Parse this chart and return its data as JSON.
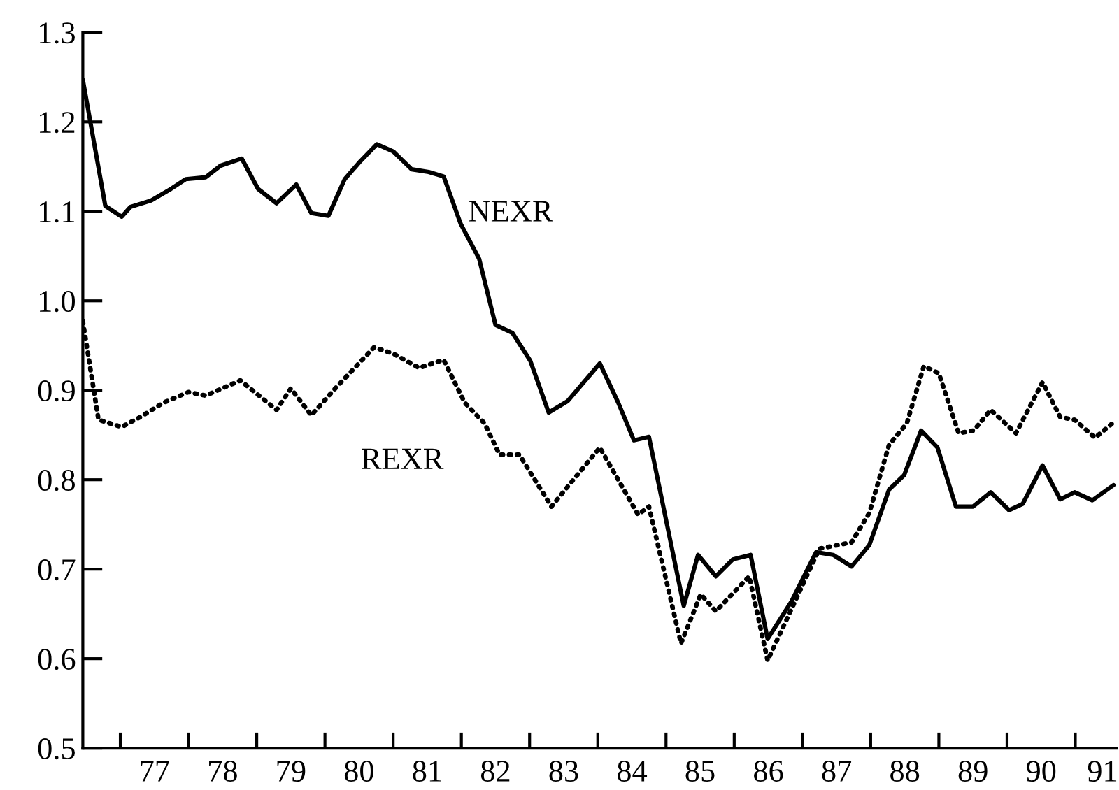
{
  "chart_data": {
    "type": "line",
    "xlim": [
      76.45,
      91.6
    ],
    "ylim": [
      0.5,
      1.3
    ],
    "yticks": [
      0.5,
      0.6,
      0.7,
      0.8,
      0.9,
      {
        "value": 1.0,
        "label": "1.0"
      },
      1.1,
      1.2,
      1.3
    ],
    "xticks": [
      {
        "value": 77,
        "label": null
      },
      {
        "value": 78,
        "label": null
      },
      {
        "value": 79,
        "label": null
      },
      {
        "value": 80,
        "label": null
      },
      {
        "value": 81,
        "label": null
      },
      {
        "value": 82,
        "label": null
      },
      {
        "value": 83,
        "label": null
      },
      {
        "value": 84,
        "label": null
      },
      {
        "value": 85,
        "label": null
      },
      {
        "value": 86,
        "label": null
      },
      {
        "value": 87,
        "label": null
      },
      {
        "value": 88,
        "label": null
      },
      {
        "value": 89,
        "label": null
      },
      {
        "value": 90,
        "label": null
      },
      {
        "value": 91,
        "label": null
      },
      {
        "value": 77.5,
        "label": "77"
      },
      {
        "value": 78.5,
        "label": "78"
      },
      {
        "value": 79.5,
        "label": "79"
      },
      {
        "value": 80.5,
        "label": "80"
      },
      {
        "value": 81.5,
        "label": "81"
      },
      {
        "value": 82.5,
        "label": "82"
      },
      {
        "value": 83.5,
        "label": "83"
      },
      {
        "value": 84.5,
        "label": "84"
      },
      {
        "value": 85.5,
        "label": "85"
      },
      {
        "value": 86.5,
        "label": "86"
      },
      {
        "value": 87.5,
        "label": "87"
      },
      {
        "value": 88.5,
        "label": "88"
      },
      {
        "value": 89.5,
        "label": "89"
      },
      {
        "value": 90.5,
        "label": "90"
      },
      {
        "value": 91.4,
        "label": "91"
      }
    ],
    "grid": false,
    "legend": false,
    "marker": "none",
    "series": [
      {
        "name": "NEXR",
        "color": "#000000",
        "line_style": "solid",
        "x": [
          76.45,
          76.78,
          77.02,
          77.15,
          77.45,
          77.74,
          77.96,
          78.25,
          78.47,
          78.78,
          79.02,
          79.29,
          79.58,
          79.8,
          80.05,
          80.29,
          80.52,
          80.76,
          81.0,
          81.27,
          81.52,
          81.74,
          81.99,
          82.26,
          82.5,
          82.75,
          83.01,
          83.28,
          83.56,
          84.03,
          84.3,
          84.53,
          84.75,
          85.26,
          85.47,
          85.73,
          85.98,
          86.24,
          86.49,
          86.84,
          87.2,
          87.45,
          87.72,
          87.98,
          88.27,
          88.49,
          88.74,
          88.98,
          89.25,
          89.5,
          89.76,
          90.03,
          90.23,
          90.52,
          90.78,
          90.99,
          91.25,
          91.56
        ],
        "values": [
          1.247,
          1.106,
          1.094,
          1.105,
          1.112,
          1.125,
          1.136,
          1.138,
          1.151,
          1.159,
          1.125,
          1.109,
          1.13,
          1.098,
          1.095,
          1.136,
          1.156,
          1.175,
          1.167,
          1.147,
          1.144,
          1.139,
          1.086,
          1.047,
          0.973,
          0.964,
          0.933,
          0.875,
          0.888,
          0.93,
          0.886,
          0.844,
          0.848,
          0.659,
          0.716,
          0.692,
          0.711,
          0.716,
          0.622,
          0.664,
          0.719,
          0.716,
          0.703,
          0.727,
          0.789,
          0.805,
          0.855,
          0.836,
          0.77,
          0.77,
          0.786,
          0.766,
          0.773,
          0.816,
          0.778,
          0.786,
          0.777,
          0.794
        ]
      },
      {
        "name": "REXR",
        "color": "#000000",
        "line_style": "dotted",
        "x": [
          76.45,
          76.68,
          77.02,
          77.29,
          77.63,
          78.0,
          78.25,
          78.76,
          79.29,
          79.5,
          79.8,
          80.15,
          80.72,
          81.0,
          81.38,
          81.74,
          82.05,
          82.34,
          82.56,
          82.85,
          83.32,
          84.03,
          84.59,
          84.75,
          85.22,
          85.51,
          85.73,
          86.22,
          86.49,
          87.25,
          87.72,
          87.98,
          88.27,
          88.53,
          88.78,
          89.0,
          89.29,
          89.51,
          89.76,
          90.13,
          90.52,
          90.78,
          90.99,
          91.29,
          91.56
        ],
        "values": [
          0.977,
          0.867,
          0.859,
          0.87,
          0.886,
          0.898,
          0.894,
          0.911,
          0.878,
          0.902,
          0.872,
          0.902,
          0.948,
          0.941,
          0.925,
          0.934,
          0.886,
          0.863,
          0.828,
          0.828,
          0.77,
          0.836,
          0.761,
          0.77,
          0.617,
          0.672,
          0.653,
          0.692,
          0.598,
          0.723,
          0.73,
          0.763,
          0.839,
          0.863,
          0.927,
          0.919,
          0.852,
          0.855,
          0.878,
          0.852,
          0.909,
          0.87,
          0.867,
          0.847,
          0.864
        ]
      }
    ]
  }
}
